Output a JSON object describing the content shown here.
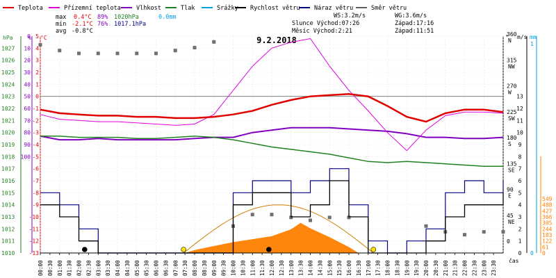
{
  "legend": [
    {
      "label": "Teplota",
      "color": "#e00000"
    },
    {
      "label": "Přízemní teplota",
      "color": "#e000e0"
    },
    {
      "label": "Vlhkost",
      "color": "#8000c0"
    },
    {
      "label": "Tlak",
      "color": "#208020"
    },
    {
      "label": "Srážky",
      "color": "#00a0e0"
    },
    {
      "label": "Rychlost větru",
      "color": "#000000"
    },
    {
      "label": "Náraz větru",
      "color": "#000080"
    },
    {
      "label": "Směr větru",
      "color": "#606060"
    }
  ],
  "stats": {
    "max_label": "max",
    "min_label": "min",
    "avg_label": "avg",
    "max_temp": "0.4°C",
    "max_hum": "89%",
    "max_press": "1020hPa",
    "max_rain": "0.0mm",
    "min_temp": "-2.1°C",
    "min_hum": "76%",
    "min_press": "1017.1hPa",
    "avg_temp": "-0.8°C",
    "ws": "WS:3.2m/s",
    "wg": "WG:3.6m/s",
    "sun": "Slunce Východ:07:26",
    "sun_set": "Západ:17:16",
    "moon": "Měsíc  Východ:2:21",
    "moon_set": "Západ:11:51"
  },
  "chart_data": {
    "type": "line",
    "title": "9.2.2018",
    "xlabel": "čas",
    "x_ticks": [
      "00:00",
      "00:30",
      "01:00",
      "01:30",
      "02:00",
      "02:30",
      "03:00",
      "03:30",
      "04:00",
      "04:30",
      "05:00",
      "05:30",
      "06:00",
      "06:30",
      "07:00",
      "07:30",
      "08:00",
      "08:30",
      "09:00",
      "09:30",
      "10:00",
      "10:30",
      "11:00",
      "11:30",
      "12:00",
      "12:30",
      "13:00",
      "13:30",
      "14:00",
      "14:30",
      "15:00",
      "15:30",
      "16:00",
      "16:30",
      "17:00",
      "17:30",
      "18:00",
      "18:30",
      "19:00",
      "19:30",
      "20:00",
      "20:30",
      "21:00",
      "21:30",
      "22:00",
      "22:30",
      "23:00",
      "23:30"
    ],
    "axes": {
      "hpa": {
        "label": "hPa",
        "color": "#208020",
        "ticks": [
          1010,
          1011,
          1012,
          1013,
          1014,
          1015,
          1016,
          1017,
          1018,
          1019,
          1020,
          1021,
          1022,
          1023,
          1024,
          1025,
          1026,
          1027
        ]
      },
      "pct": {
        "label": "%",
        "color": "#8000c0",
        "ticks": [
          0,
          10,
          20,
          30,
          40,
          50,
          60,
          70,
          80,
          90,
          100
        ]
      },
      "celsius": {
        "label": "°C",
        "color": "#e00000",
        "ticks": [
          5,
          4,
          3,
          2,
          1,
          0,
          -1,
          -2,
          -3,
          -4,
          -5,
          -6,
          -7,
          -8,
          -9,
          -10,
          -11,
          -12,
          -13
        ]
      },
      "direction": {
        "label": "°",
        "ticks": [
          "360 N",
          "315 NW",
          "270 W",
          "225 SW",
          "180 S",
          "135 SE",
          "90 E",
          "45 NE",
          "0"
        ]
      },
      "wind": {
        "label": "m/s",
        "ticks": [
          0,
          1,
          2,
          3,
          4,
          5,
          6,
          7,
          8,
          9,
          10,
          11,
          12,
          13
        ]
      },
      "rain": {
        "label": "mm",
        "color": "#00a0e0",
        "ticks": [
          0,
          1
        ]
      },
      "solar": {
        "color": "#ff8000",
        "ticks": [
          0,
          61,
          122,
          183,
          244,
          305,
          366,
          427,
          488,
          549
        ]
      }
    },
    "series": [
      {
        "name": "Teplota",
        "color": "#e00000",
        "x": [
          0,
          1,
          2,
          3,
          4,
          5,
          6,
          7,
          8,
          9,
          10,
          11,
          12,
          13,
          14,
          15,
          16,
          17,
          18,
          19,
          20,
          21,
          22,
          23,
          24
        ],
        "y": [
          -1.1,
          -1.4,
          -1.5,
          -1.6,
          -1.6,
          -1.7,
          -1.7,
          -1.8,
          -1.8,
          -1.7,
          -1.5,
          -1.2,
          -0.7,
          -0.3,
          0.0,
          0.1,
          0.2,
          0.0,
          -0.8,
          -1.7,
          -2.1,
          -1.4,
          -1.1,
          -1.1,
          -1.3
        ]
      },
      {
        "name": "Přízemní teplota",
        "color": "#e000e0",
        "x": [
          0,
          1,
          2,
          3,
          4,
          5,
          6,
          7,
          8,
          9,
          10,
          11,
          12,
          13,
          14,
          15,
          16,
          17,
          18,
          19,
          20,
          21,
          22,
          23,
          24
        ],
        "y": [
          -1.5,
          -1.9,
          -2.0,
          -2.1,
          -2.1,
          -2.2,
          -2.3,
          -2.4,
          -2.3,
          -1.5,
          0.5,
          2.5,
          4.0,
          4.5,
          4.8,
          2.5,
          0.5,
          -1.2,
          -3.0,
          -4.5,
          -2.8,
          -1.6,
          -1.3,
          -1.3,
          -1.4
        ]
      },
      {
        "name": "Vlhkost",
        "color": "#8000c0",
        "x": [
          0,
          1,
          2,
          3,
          4,
          5,
          6,
          7,
          8,
          9,
          10,
          11,
          12,
          13,
          14,
          15,
          16,
          17,
          18,
          19,
          20,
          21,
          22,
          23,
          24
        ],
        "y": [
          83,
          86,
          86,
          85,
          86,
          86,
          86,
          86,
          85,
          84,
          84,
          80,
          78,
          76,
          76,
          76,
          77,
          78,
          79,
          81,
          84,
          84,
          85,
          85,
          84
        ]
      },
      {
        "name": "Tlak",
        "color": "#208020",
        "x": [
          0,
          1,
          2,
          3,
          4,
          5,
          6,
          7,
          8,
          9,
          10,
          11,
          12,
          13,
          14,
          15,
          16,
          17,
          18,
          19,
          20,
          21,
          22,
          23,
          24
        ],
        "y": [
          1019.7,
          1019.7,
          1019.6,
          1019.6,
          1019.6,
          1019.5,
          1019.5,
          1019.6,
          1019.7,
          1019.6,
          1019.4,
          1019.1,
          1018.8,
          1018.6,
          1018.4,
          1018.2,
          1017.9,
          1017.6,
          1017.5,
          1017.6,
          1017.5,
          1017.4,
          1017.3,
          1017.2,
          1017.2
        ]
      },
      {
        "name": "Rychlost větru",
        "color": "#000000",
        "x": [
          0,
          1,
          2,
          3,
          4,
          5,
          6,
          7,
          8,
          9,
          10,
          11,
          12,
          13,
          14,
          15,
          16,
          17,
          18,
          19,
          20,
          21,
          22,
          23,
          24
        ],
        "y": [
          4,
          3,
          1,
          0,
          0,
          0,
          0,
          0,
          0,
          0,
          4,
          5,
          5,
          3,
          4,
          6,
          3,
          0,
          0,
          0,
          1,
          3,
          4,
          4,
          5
        ]
      },
      {
        "name": "Náraz větru",
        "color": "#000080",
        "x": [
          0,
          1,
          2,
          3,
          4,
          5,
          6,
          7,
          8,
          9,
          10,
          11,
          12,
          13,
          14,
          15,
          16,
          17,
          18,
          19,
          20,
          21,
          22,
          23,
          24
        ],
        "y": [
          5,
          4,
          2,
          0,
          0,
          0,
          0,
          0,
          0,
          0,
          5,
          6,
          6,
          5,
          6,
          7,
          4,
          1,
          0,
          1,
          2,
          5,
          6,
          5,
          6
        ]
      },
      {
        "name": "Sluneční svit",
        "color": "#ff8000",
        "x": [
          7.5,
          8,
          9,
          10,
          11,
          12,
          13,
          13.5,
          14,
          15,
          16,
          16.5
        ],
        "y": [
          0,
          30,
          70,
          110,
          140,
          170,
          240,
          305,
          250,
          160,
          60,
          0
        ]
      }
    ],
    "wind_direction": {
      "x": [
        0,
        1,
        2,
        3,
        4,
        5,
        6,
        7,
        8,
        9,
        10,
        11,
        12,
        13,
        14,
        15,
        16,
        17,
        18,
        19,
        20,
        21,
        22,
        23,
        24
      ],
      "y": [
        345,
        335,
        330,
        330,
        330,
        330,
        330,
        335,
        340,
        350,
        30,
        50,
        50,
        45,
        40,
        45,
        45,
        null,
        null,
        null,
        30,
        20,
        15,
        20,
        20
      ]
    },
    "sun_arc": {
      "rise": 7.43,
      "set": 17.27,
      "peak_value": 488
    },
    "markers": [
      {
        "type": "moonset-dot",
        "x": 2.3
      },
      {
        "type": "sunrise-dot",
        "x": 7.43
      },
      {
        "type": "moonset-dot",
        "x": 11.85
      },
      {
        "type": "sunset-dot",
        "x": 17.27
      }
    ]
  }
}
